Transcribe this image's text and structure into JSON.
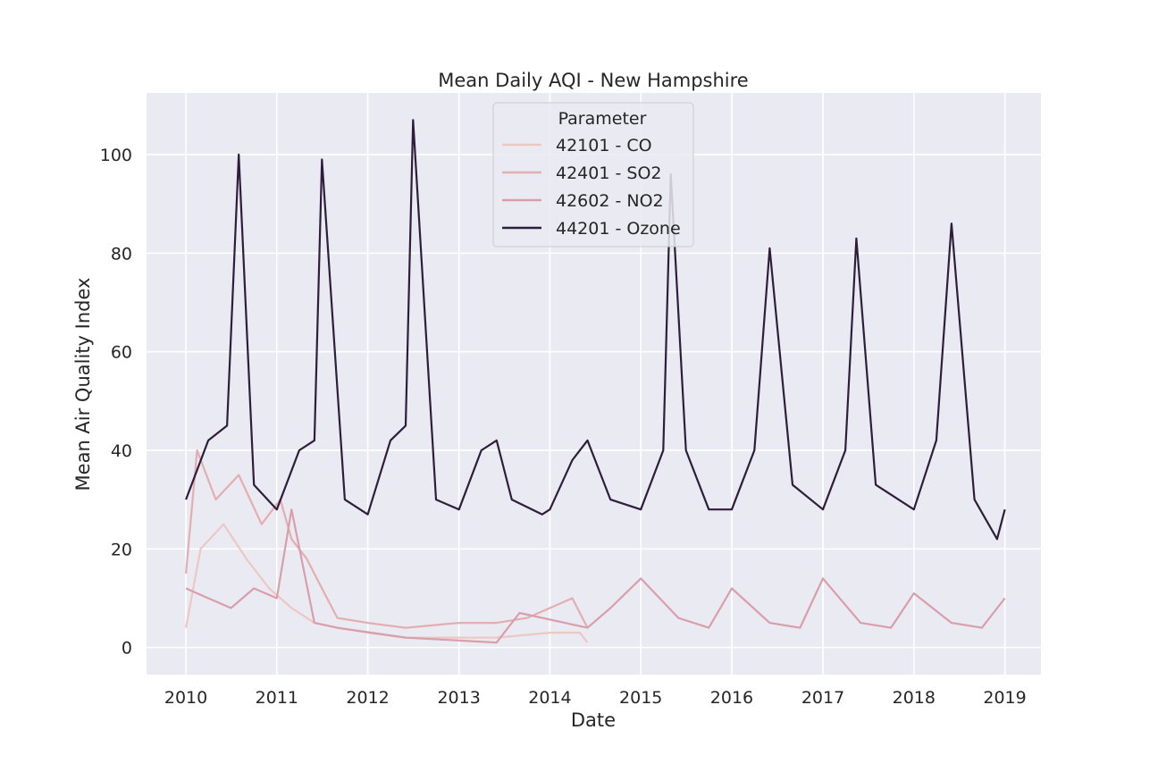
{
  "chart_data": {
    "type": "line",
    "title": "Mean Daily AQI - New Hampshire",
    "xlabel": "Date",
    "ylabel": "Mean Air Quality Index",
    "xlim": [
      "2009-07-27",
      "2019-05-26"
    ],
    "ylim": [
      -5.5,
      112.5
    ],
    "x_ticks": [
      "2010",
      "2011",
      "2012",
      "2013",
      "2014",
      "2015",
      "2016",
      "2017",
      "2018",
      "2019"
    ],
    "y_ticks": [
      0,
      20,
      40,
      60,
      80,
      100
    ],
    "grid": true,
    "legend": {
      "title": "Parameter",
      "placement": "top-center"
    },
    "series": [
      {
        "name": "42101 - CO",
        "color": "#ecc8c5",
        "points": [
          [
            "2010-01-01",
            4
          ],
          [
            "2010-03-01",
            20
          ],
          [
            "2010-06-01",
            25
          ],
          [
            "2010-09-01",
            18
          ],
          [
            "2010-12-01",
            12
          ],
          [
            "2011-03-01",
            8
          ],
          [
            "2011-06-01",
            5
          ],
          [
            "2011-09-01",
            4
          ],
          [
            "2012-01-01",
            3
          ],
          [
            "2012-06-01",
            2
          ],
          [
            "2013-01-01",
            2
          ],
          [
            "2013-06-01",
            2
          ],
          [
            "2014-01-01",
            3
          ],
          [
            "2014-05-01",
            3
          ],
          [
            "2014-06-01",
            1
          ]
        ]
      },
      {
        "name": "42401 - SO2",
        "color": "#e3aeb0",
        "points": [
          [
            "2010-01-01",
            15
          ],
          [
            "2010-02-15",
            40
          ],
          [
            "2010-05-01",
            30
          ],
          [
            "2010-08-01",
            35
          ],
          [
            "2010-11-01",
            25
          ],
          [
            "2011-01-15",
            30
          ],
          [
            "2011-03-01",
            22
          ],
          [
            "2011-05-01",
            18
          ],
          [
            "2011-07-01",
            12
          ],
          [
            "2011-09-01",
            6
          ],
          [
            "2012-01-01",
            5
          ],
          [
            "2012-06-01",
            4
          ],
          [
            "2013-01-01",
            5
          ],
          [
            "2013-06-01",
            5
          ],
          [
            "2013-10-01",
            6
          ],
          [
            "2014-01-01",
            8
          ],
          [
            "2014-04-01",
            10
          ],
          [
            "2014-06-01",
            4
          ]
        ]
      },
      {
        "name": "42602 - NO2",
        "color": "#d89fab",
        "points": [
          [
            "2010-01-01",
            12
          ],
          [
            "2010-04-01",
            10
          ],
          [
            "2010-07-01",
            8
          ],
          [
            "2010-10-01",
            12
          ],
          [
            "2011-01-01",
            10
          ],
          [
            "2011-03-01",
            28
          ],
          [
            "2011-06-01",
            5
          ],
          [
            "2011-09-01",
            4
          ],
          [
            "2012-06-01",
            2
          ],
          [
            "2013-06-01",
            1
          ],
          [
            "2013-09-01",
            7
          ],
          [
            "2014-06-01",
            4
          ],
          [
            "2014-09-01",
            8
          ],
          [
            "2015-01-01",
            14
          ],
          [
            "2015-06-01",
            6
          ],
          [
            "2015-10-01",
            4
          ],
          [
            "2016-01-01",
            12
          ],
          [
            "2016-06-01",
            5
          ],
          [
            "2016-10-01",
            4
          ],
          [
            "2017-01-01",
            14
          ],
          [
            "2017-06-01",
            5
          ],
          [
            "2017-10-01",
            4
          ],
          [
            "2018-01-01",
            11
          ],
          [
            "2018-06-01",
            5
          ],
          [
            "2018-10-01",
            4
          ],
          [
            "2019-01-01",
            10
          ]
        ]
      },
      {
        "name": "44201 - Ozone",
        "color": "#2e1e3b",
        "points": [
          [
            "2010-01-01",
            30
          ],
          [
            "2010-04-01",
            42
          ],
          [
            "2010-06-15",
            45
          ],
          [
            "2010-08-01",
            100
          ],
          [
            "2010-10-01",
            33
          ],
          [
            "2011-01-01",
            28
          ],
          [
            "2011-04-01",
            40
          ],
          [
            "2011-06-01",
            42
          ],
          [
            "2011-07-01",
            99
          ],
          [
            "2011-10-01",
            30
          ],
          [
            "2012-01-01",
            27
          ],
          [
            "2012-04-01",
            42
          ],
          [
            "2012-06-01",
            45
          ],
          [
            "2012-07-01",
            107
          ],
          [
            "2012-10-01",
            30
          ],
          [
            "2013-01-01",
            28
          ],
          [
            "2013-04-01",
            40
          ],
          [
            "2013-06-01",
            42
          ],
          [
            "2013-08-01",
            30
          ],
          [
            "2013-12-01",
            27
          ],
          [
            "2014-01-01",
            28
          ],
          [
            "2014-04-01",
            38
          ],
          [
            "2014-06-01",
            42
          ],
          [
            "2014-09-01",
            30
          ],
          [
            "2015-01-01",
            28
          ],
          [
            "2015-04-01",
            40
          ],
          [
            "2015-05-01",
            96
          ],
          [
            "2015-07-01",
            40
          ],
          [
            "2015-10-01",
            28
          ],
          [
            "2016-01-01",
            28
          ],
          [
            "2016-04-01",
            40
          ],
          [
            "2016-06-01",
            81
          ],
          [
            "2016-09-01",
            33
          ],
          [
            "2017-01-01",
            28
          ],
          [
            "2017-04-01",
            40
          ],
          [
            "2017-05-15",
            83
          ],
          [
            "2017-08-01",
            33
          ],
          [
            "2018-01-01",
            28
          ],
          [
            "2018-04-01",
            42
          ],
          [
            "2018-06-01",
            86
          ],
          [
            "2018-09-01",
            30
          ],
          [
            "2018-12-01",
            22
          ],
          [
            "2019-01-01",
            28
          ]
        ]
      }
    ]
  }
}
